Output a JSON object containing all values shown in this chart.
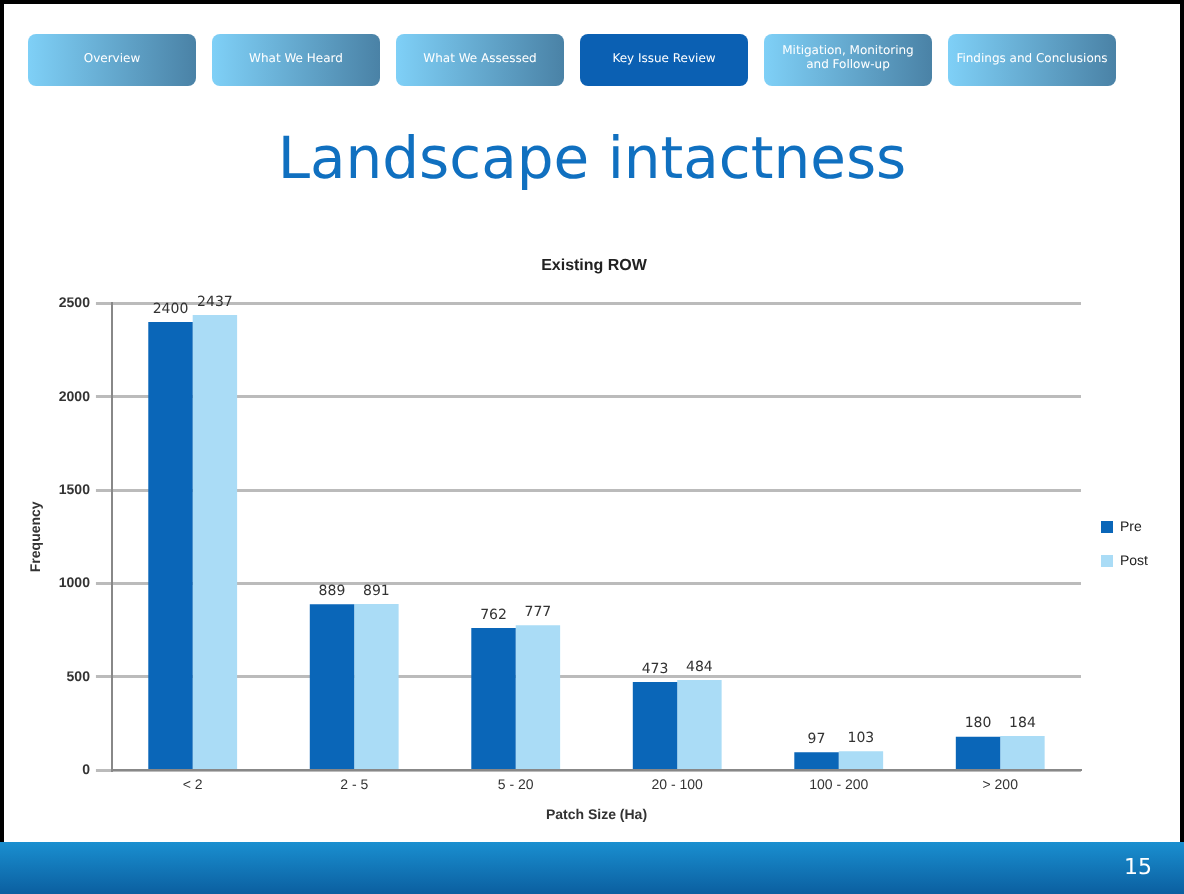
{
  "chart_data": {
    "type": "bar",
    "title": "Landscape intactness",
    "subtitle": "Existing ROW",
    "xlabel": "Patch Size (Ha)",
    "ylabel": "Frequency",
    "categories": [
      "< 2",
      "2 - 5",
      "5 - 20",
      "20 - 100",
      "100 - 200",
      "> 200"
    ],
    "series": [
      {
        "name": "Pre",
        "color": "#0a66b8",
        "values": [
          2400,
          889,
          762,
          473,
          97,
          180
        ]
      },
      {
        "name": "Post",
        "color": "#aadcf6",
        "values": [
          2437,
          891,
          777,
          484,
          103,
          184
        ]
      }
    ],
    "ylim": [
      0,
      2500
    ],
    "yticks": [
      0,
      500,
      1000,
      1500,
      2000,
      2500
    ],
    "grid": "y",
    "legend": "right",
    "data_labels": true,
    "annotations": [
      "Overview",
      "What We Heard",
      "What We Assessed",
      "Key Issue Review",
      "Mitigation, Monitoring and Follow-up",
      "Findings and Conclusions",
      "15"
    ]
  }
}
